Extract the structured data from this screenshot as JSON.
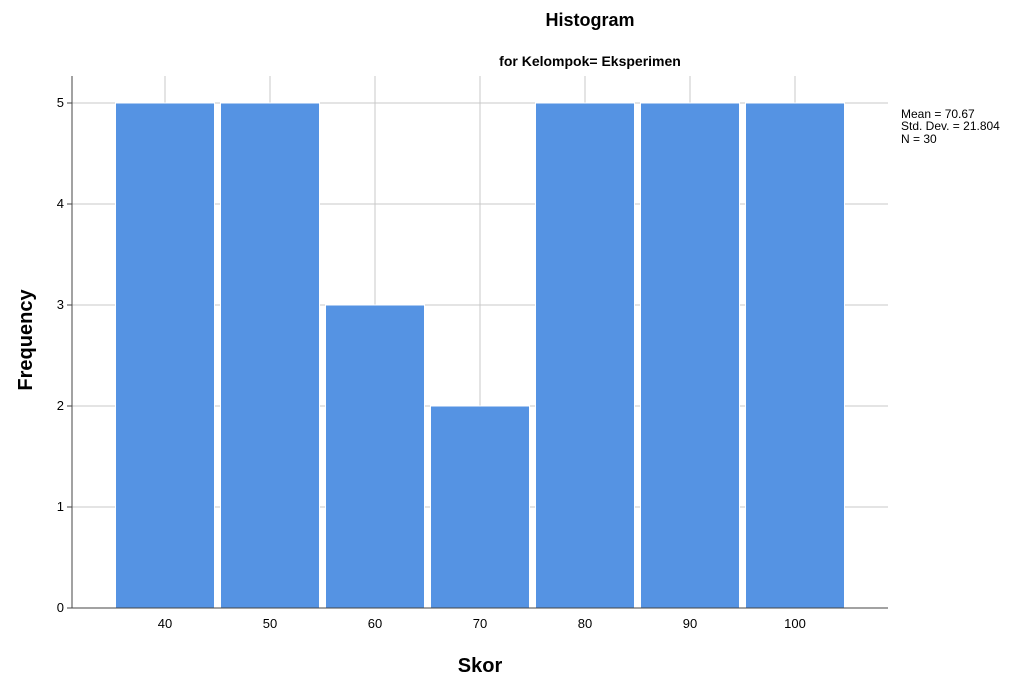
{
  "chart_data": {
    "type": "bar",
    "title": "Histogram",
    "subtitle": "for Kelompok= Eksperimen",
    "xlabel": "Skor",
    "ylabel": "Frequency",
    "categories": [
      "40",
      "50",
      "60",
      "70",
      "80",
      "90",
      "100"
    ],
    "values": [
      5,
      5,
      3,
      2,
      5,
      5,
      5
    ],
    "ylim": [
      0,
      5
    ],
    "yticks": [
      "0",
      "1",
      "2",
      "3",
      "4",
      "5"
    ],
    "grid": true,
    "bar_color": "#5593E3",
    "stats": [
      "Mean = 70.67",
      "Std. Dev. = 21.804",
      "N = 30"
    ]
  }
}
